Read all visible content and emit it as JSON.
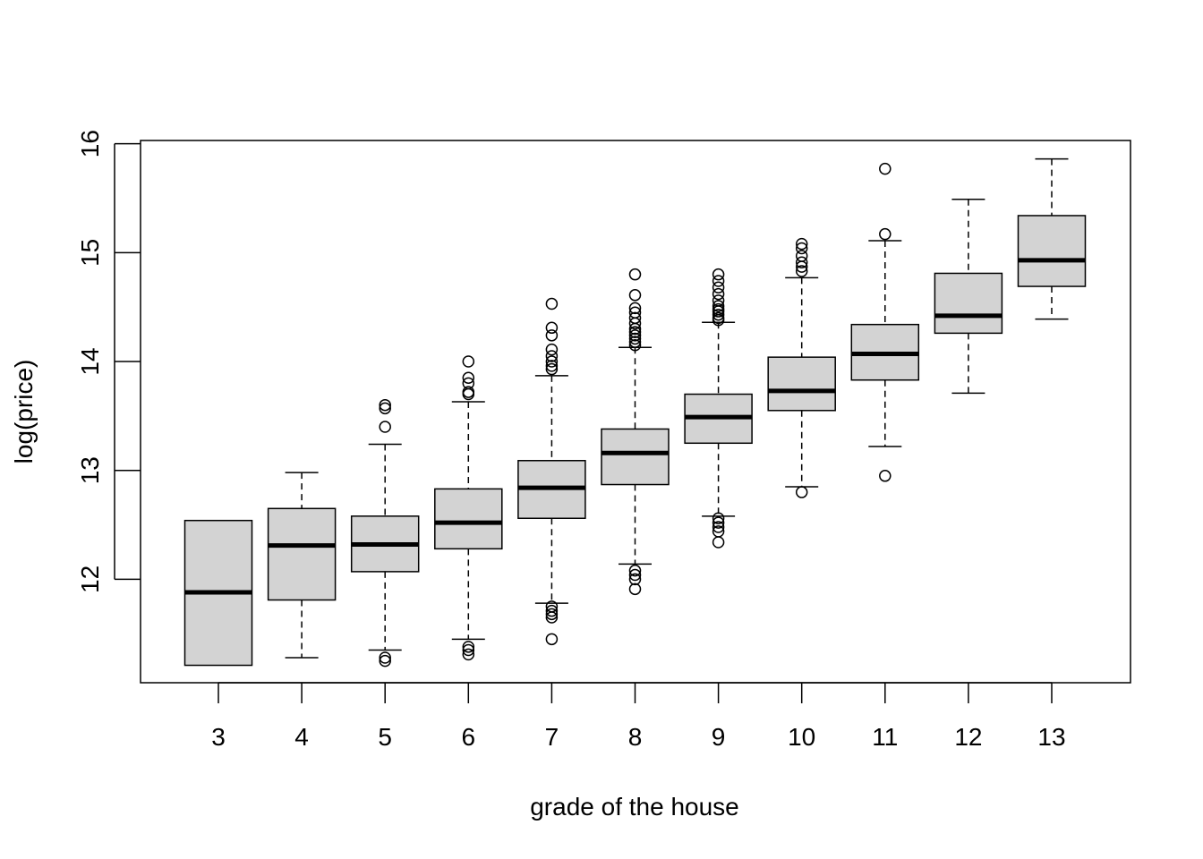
{
  "chart_data": {
    "type": "boxplot",
    "title": "",
    "xlabel": "grade of the house",
    "ylabel": "log(price)",
    "ylim": [
      11.05,
      16.03
    ],
    "yticks": [
      12,
      13,
      14,
      15,
      16
    ],
    "grid": false,
    "legend": "none",
    "colors": {
      "box_fill": "#d3d3d3",
      "stroke": "#000000"
    },
    "categories": [
      "3",
      "4",
      "5",
      "6",
      "7",
      "8",
      "9",
      "10",
      "11",
      "12",
      "13"
    ],
    "boxes": [
      {
        "category": "3",
        "whisker_low": 11.21,
        "q1": 11.21,
        "median": 11.88,
        "q3": 12.54,
        "whisker_high": 12.54,
        "outliers": []
      },
      {
        "category": "4",
        "whisker_low": 11.28,
        "q1": 11.81,
        "median": 12.31,
        "q3": 12.65,
        "whisker_high": 12.98,
        "outliers": []
      },
      {
        "category": "5",
        "whisker_low": 11.35,
        "q1": 12.07,
        "median": 12.32,
        "q3": 12.58,
        "whisker_high": 13.24,
        "outliers": [
          13.6,
          13.57,
          13.4,
          11.28,
          11.25
        ]
      },
      {
        "category": "6",
        "whisker_low": 11.45,
        "q1": 12.28,
        "median": 12.52,
        "q3": 12.83,
        "whisker_high": 13.63,
        "outliers": [
          14.0,
          13.85,
          13.8,
          13.72,
          13.7,
          11.38,
          11.35,
          11.31
        ]
      },
      {
        "category": "7",
        "whisker_low": 11.78,
        "q1": 12.56,
        "median": 12.84,
        "q3": 13.09,
        "whisker_high": 13.87,
        "outliers": [
          14.53,
          14.31,
          14.24,
          14.11,
          14.05,
          14.0,
          13.96,
          13.93,
          11.75,
          11.71,
          11.68,
          11.65,
          11.45
        ]
      },
      {
        "category": "8",
        "whisker_low": 12.14,
        "q1": 12.87,
        "median": 13.16,
        "q3": 13.38,
        "whisker_high": 14.13,
        "outliers": [
          14.8,
          14.61,
          14.49,
          14.45,
          14.4,
          14.35,
          14.3,
          14.27,
          14.24,
          14.21,
          14.18,
          14.15,
          12.08,
          12.04,
          12.0,
          11.91
        ]
      },
      {
        "category": "9",
        "whisker_low": 12.58,
        "q1": 13.25,
        "median": 13.49,
        "q3": 13.7,
        "whisker_high": 14.36,
        "outliers": [
          14.8,
          14.74,
          14.68,
          14.62,
          14.56,
          14.51,
          14.48,
          14.46,
          14.43,
          14.4,
          14.38,
          12.56,
          12.52,
          12.48,
          12.44,
          12.34
        ]
      },
      {
        "category": "10",
        "whisker_low": 12.85,
        "q1": 13.55,
        "median": 13.73,
        "q3": 14.04,
        "whisker_high": 14.77,
        "outliers": [
          15.08,
          15.04,
          14.97,
          14.91,
          14.87,
          14.83,
          12.8
        ]
      },
      {
        "category": "11",
        "whisker_low": 13.22,
        "q1": 13.83,
        "median": 14.07,
        "q3": 14.34,
        "whisker_high": 15.11,
        "outliers": [
          15.77,
          15.17,
          12.95
        ]
      },
      {
        "category": "12",
        "whisker_low": 13.71,
        "q1": 14.26,
        "median": 14.42,
        "q3": 14.81,
        "whisker_high": 15.49,
        "outliers": []
      },
      {
        "category": "13",
        "whisker_low": 14.39,
        "q1": 14.69,
        "median": 14.93,
        "q3": 15.34,
        "whisker_high": 15.86,
        "outliers": []
      }
    ]
  }
}
